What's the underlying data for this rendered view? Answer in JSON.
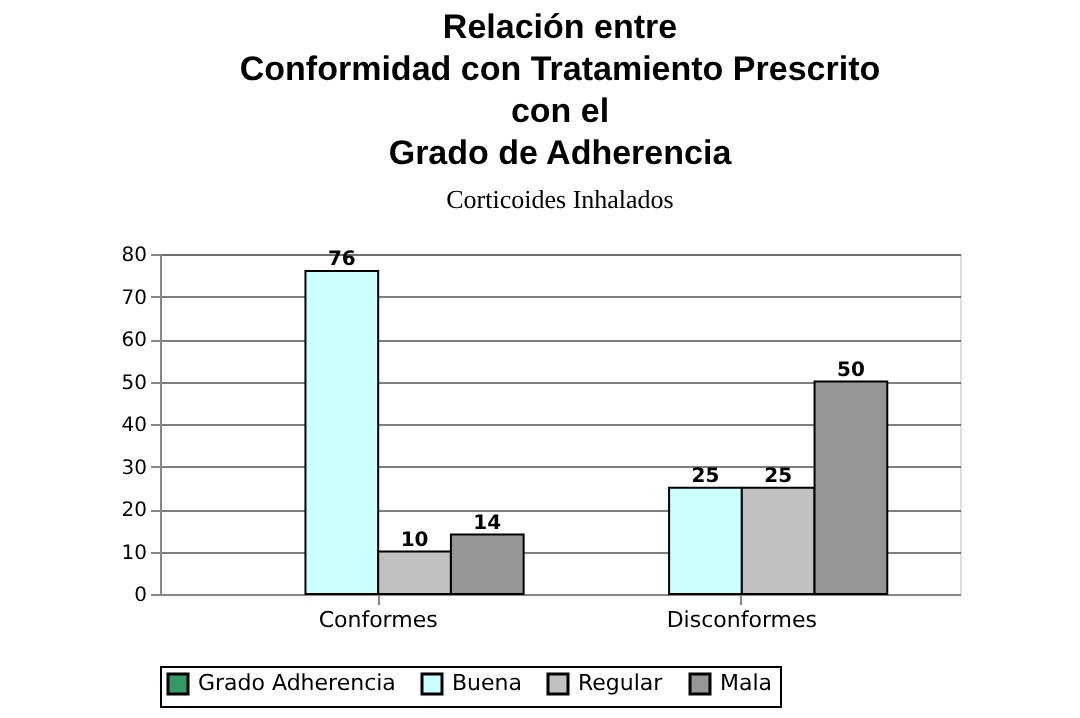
{
  "chart_data": {
    "type": "bar",
    "title": "Relación entre\nConformidad con Tratamiento Prescrito\ncon el\nGrado de Adherencia",
    "subtitle": "Corticoides Inhalados",
    "categories": [
      "Conformes",
      "Disconformes"
    ],
    "series": [
      {
        "name": "Grado Adherencia",
        "color": "#339966",
        "values": [
          null,
          null
        ]
      },
      {
        "name": "Buena",
        "color": "#ccffff",
        "values": [
          76,
          25
        ]
      },
      {
        "name": "Regular",
        "color": "#c0c0c0",
        "values": [
          10,
          25
        ]
      },
      {
        "name": "Mala",
        "color": "#969696",
        "values": [
          14,
          50
        ]
      }
    ],
    "ylim": [
      0,
      80
    ],
    "yticks": [
      0,
      10,
      20,
      30,
      40,
      50,
      60,
      70,
      80
    ],
    "grid": "y",
    "legend": "bottom",
    "data_labels": true
  }
}
